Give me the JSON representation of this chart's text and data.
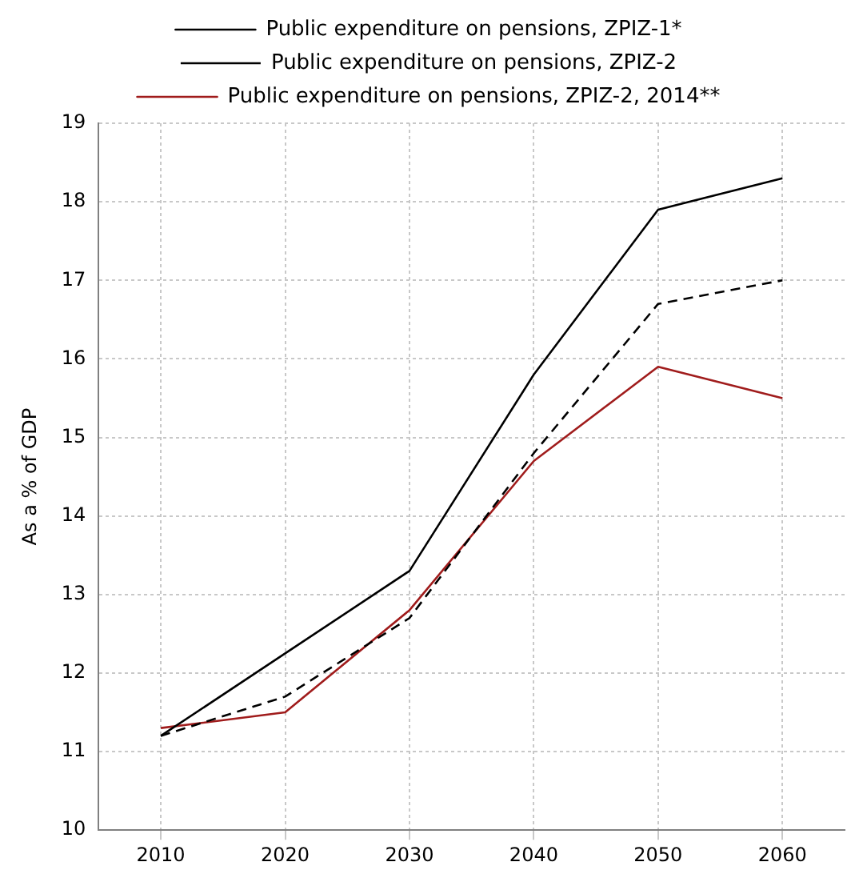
{
  "chart_data": {
    "type": "line",
    "ylabel": "As a % of GDP",
    "categories": [
      "2010",
      "2020",
      "2030",
      "2040",
      "2050",
      "2060"
    ],
    "ylim": [
      10,
      19
    ],
    "yticks": [
      10,
      11,
      12,
      13,
      14,
      15,
      16,
      17,
      18,
      19
    ],
    "grid": true,
    "legend": "top",
    "marker": "none",
    "series": [
      {
        "name": "Public expenditure on pensions, ZPIZ-1*",
        "color": "#000000",
        "line_style": "solid",
        "values": [
          11.2,
          12.25,
          13.3,
          15.8,
          17.9,
          18.3
        ]
      },
      {
        "name": "Public expenditure on pensions, ZPIZ-2",
        "color": "#000000",
        "line_style": "dashed",
        "values": [
          11.2,
          11.7,
          12.7,
          14.8,
          16.7,
          17.0
        ]
      },
      {
        "name": "Public expenditure on pensions, ZPIZ-2, 2014**",
        "color": "#a01c1c",
        "line_style": "solid",
        "values": [
          11.3,
          11.5,
          12.8,
          14.7,
          15.9,
          15.5
        ]
      }
    ]
  }
}
